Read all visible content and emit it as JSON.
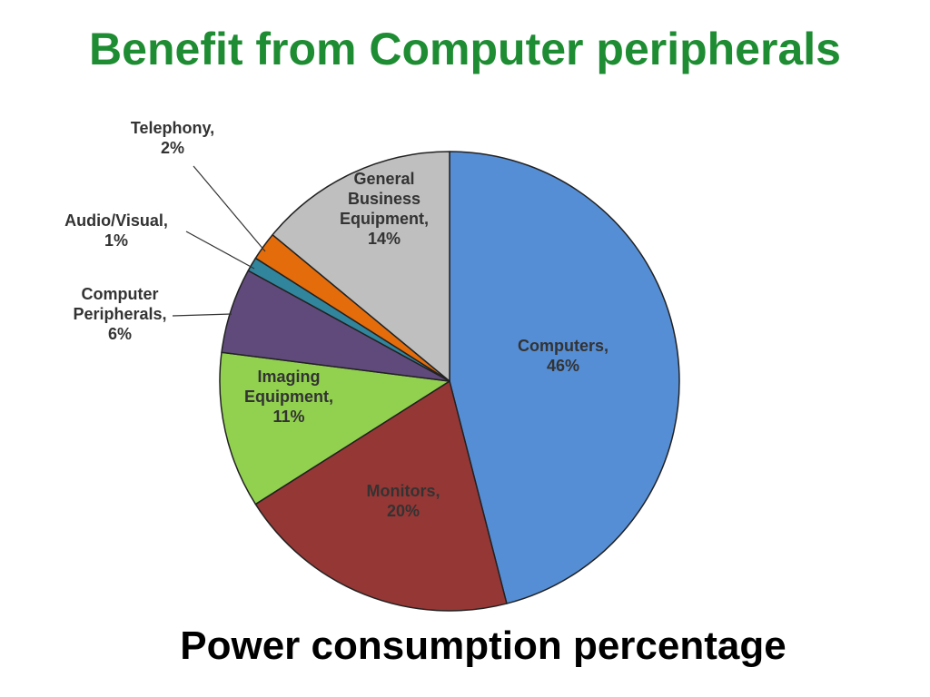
{
  "slide": {
    "title": "Benefit from Computer peripherals"
  },
  "chart_data": {
    "type": "pie",
    "title": "",
    "caption": "Power consumption percentage",
    "unit": "%",
    "start_angle_deg": 0,
    "direction": "clockwise",
    "slices": [
      {
        "name": "Computers,",
        "value": 46,
        "label": "46%",
        "color": "#558ed5"
      },
      {
        "name": "Monitors,",
        "value": 20,
        "label": "20%",
        "color": "#953735"
      },
      {
        "name": "Imaging Equipment,",
        "value": 11,
        "label": "11%",
        "color": "#92d050"
      },
      {
        "name": "Computer Peripherals,",
        "value": 6,
        "label": "6%",
        "color": "#604a7b"
      },
      {
        "name": "Audio/Visual,",
        "value": 1,
        "label": "1%",
        "color": "#31859c"
      },
      {
        "name": "Telephony,",
        "value": 2,
        "label": "2%",
        "color": "#e46c0a"
      },
      {
        "name": "General Business Equipment,",
        "value": 14,
        "label": "14%",
        "color": "#bfbfbf"
      }
    ]
  }
}
